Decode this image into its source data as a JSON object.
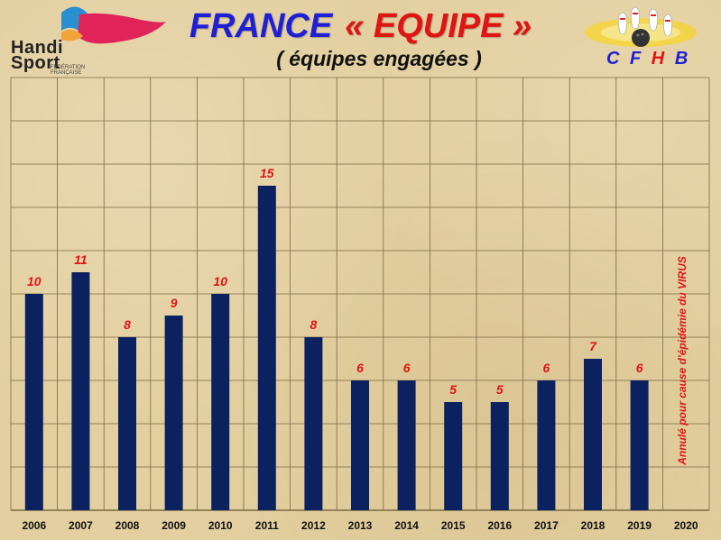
{
  "header": {
    "title_main": "FRANCE",
    "title_accent": "« EQUIPE »",
    "subtitle": "( équipes  engagées )",
    "org_letters": [
      {
        "char": "C",
        "color": "#1f1fd6"
      },
      {
        "char": "F",
        "color": "#1f1fd6"
      },
      {
        "char": "H",
        "color": "#e01414"
      },
      {
        "char": "B",
        "color": "#1f1fd6"
      }
    ]
  },
  "logos": {
    "left": {
      "word1": "Handi",
      "word2": "Sport",
      "small_line1": "FÉDÉRATION",
      "small_line2": "FRANÇAISE"
    },
    "right": {
      "icon": "bowling-icon"
    }
  },
  "colors": {
    "bar": "#0c2260",
    "value_label": "#e01414",
    "grid": "#7a6a44",
    "background": "#e3cf9f"
  },
  "chart_data": {
    "type": "bar",
    "title": "FRANCE « EQUIPE »",
    "subtitle": "( équipes  engagées )",
    "xlabel": "",
    "ylabel": "",
    "categories": [
      "2006",
      "2007",
      "2008",
      "2009",
      "2010",
      "2011",
      "2012",
      "2013",
      "2014",
      "2015",
      "2016",
      "2017",
      "2018",
      "2019",
      "2020"
    ],
    "values": [
      10,
      11,
      8,
      9,
      10,
      15,
      8,
      6,
      6,
      5,
      5,
      6,
      7,
      6,
      null
    ],
    "ylim": [
      0,
      20
    ],
    "grid": true,
    "legend": "none",
    "annotations": [
      {
        "category": "2020",
        "text": "Annulé  pour  cause d'épidémie  du  VIRUS"
      }
    ]
  }
}
